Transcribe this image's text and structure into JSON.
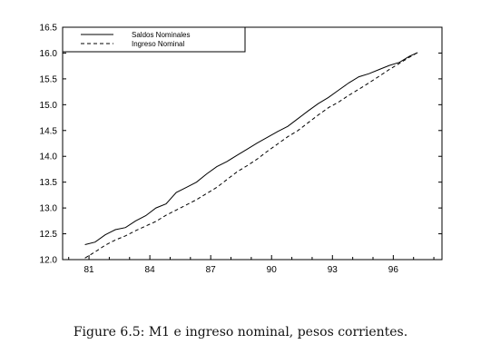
{
  "caption": "Figure 6.5: M1 e ingreso nominal, pesos corrientes.",
  "chart_data": {
    "type": "line",
    "title": "",
    "xlabel": "",
    "ylabel": "",
    "xlim": [
      79.7,
      98.4
    ],
    "ylim": [
      12.0,
      16.5
    ],
    "x_ticks": [
      81,
      84,
      87,
      90,
      93,
      96
    ],
    "y_ticks": [
      12.0,
      12.5,
      13.0,
      13.5,
      14.0,
      14.5,
      15.0,
      15.5,
      16.0,
      16.5
    ],
    "y_tick_labels": [
      "12.0",
      "12.5",
      "13.0",
      "13.5",
      "14.0",
      "14.5",
      "15.0",
      "15.5",
      "16.0",
      "16.5"
    ],
    "grid": false,
    "legend_position": "top-left",
    "series": [
      {
        "name": "Saldos Nominales",
        "style": "solid",
        "color": "#000000",
        "x": [
          80.8,
          81.3,
          81.8,
          82.3,
          82.8,
          83.3,
          83.8,
          84.3,
          84.8,
          85.3,
          85.8,
          86.3,
          86.8,
          87.3,
          87.8,
          88.3,
          88.8,
          89.3,
          89.8,
          90.3,
          90.8,
          91.3,
          91.8,
          92.3,
          92.8,
          93.3,
          93.8,
          94.3,
          94.8,
          95.3,
          95.8,
          96.3,
          96.8,
          97.2
        ],
        "y": [
          12.29,
          12.34,
          12.48,
          12.58,
          12.62,
          12.75,
          12.85,
          13.0,
          13.08,
          13.3,
          13.4,
          13.5,
          13.66,
          13.8,
          13.9,
          14.02,
          14.14,
          14.26,
          14.37,
          14.48,
          14.58,
          14.73,
          14.88,
          15.02,
          15.14,
          15.28,
          15.42,
          15.54,
          15.6,
          15.68,
          15.76,
          15.82,
          15.94,
          16.01
        ]
      },
      {
        "name": "Ingreso Nominal",
        "style": "dashed",
        "color": "#000000",
        "x": [
          80.8,
          81.3,
          81.8,
          82.3,
          82.8,
          83.3,
          83.8,
          84.3,
          84.8,
          85.3,
          85.8,
          86.3,
          86.8,
          87.3,
          87.8,
          88.3,
          88.8,
          89.3,
          89.8,
          90.3,
          90.8,
          91.3,
          91.8,
          92.3,
          92.8,
          93.3,
          93.8,
          94.3,
          94.8,
          95.3,
          95.8,
          96.3,
          96.8,
          97.2
        ],
        "y": [
          12.03,
          12.15,
          12.28,
          12.38,
          12.46,
          12.56,
          12.65,
          12.74,
          12.86,
          12.96,
          13.06,
          13.16,
          13.28,
          13.4,
          13.55,
          13.7,
          13.82,
          13.95,
          14.1,
          14.24,
          14.38,
          14.5,
          14.65,
          14.8,
          14.94,
          15.05,
          15.18,
          15.3,
          15.42,
          15.55,
          15.68,
          15.8,
          15.92,
          16.01
        ]
      }
    ]
  }
}
